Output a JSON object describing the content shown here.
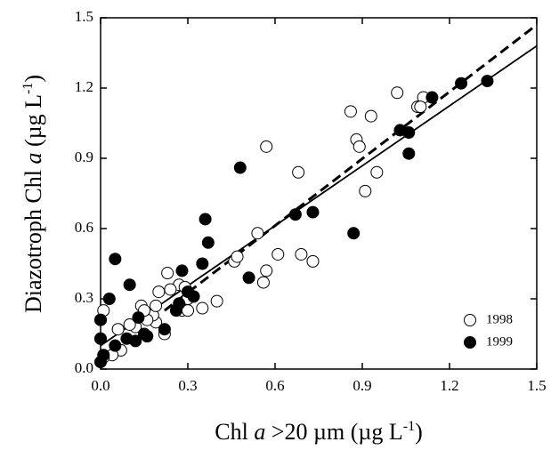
{
  "chart_data": {
    "type": "scatter",
    "xlabel": [
      "Chl ",
      "a",
      " >20 µm (µg L",
      "-1",
      ")"
    ],
    "ylabel": [
      "Diazotroph Chl ",
      "a",
      " (µg L",
      "-1",
      ")"
    ],
    "xlim": [
      0,
      1.5
    ],
    "ylim": [
      0,
      1.5
    ],
    "xticks": [
      {
        "value": 0,
        "label": "0.0"
      },
      {
        "value": 0.3,
        "label": "0.3"
      },
      {
        "value": 0.6,
        "label": "0.6"
      },
      {
        "value": 0.9,
        "label": "0.9"
      },
      {
        "value": 1.2,
        "label": "1.2"
      },
      {
        "value": 1.5,
        "label": "1.5"
      }
    ],
    "yticks": [
      {
        "value": 0,
        "label": "0.0"
      },
      {
        "value": 0.3,
        "label": "0.3"
      },
      {
        "value": 0.6,
        "label": "0.6"
      },
      {
        "value": 0.9,
        "label": "0.9"
      },
      {
        "value": 1.2,
        "label": "1.2"
      },
      {
        "value": 1.5,
        "label": "1.5"
      }
    ],
    "legend": "lower right",
    "series": [
      {
        "name": "1998",
        "color": "#000000",
        "filled": false,
        "x": [
          1.02,
          0.86,
          0.93,
          1.09,
          1.11,
          1.1,
          0.88,
          0.89,
          0.57,
          0.68,
          0.95,
          0.91,
          0.54,
          0.61,
          0.69,
          0.73,
          0.57,
          0.56,
          0.46,
          0.47,
          0.4,
          0.35,
          0.23,
          0.27,
          0.29,
          0.24,
          0.3,
          0.2,
          0.28,
          0.3,
          0.22,
          0.19,
          0.18,
          0.16,
          0.14,
          0.12,
          0.1,
          0.06,
          0.07,
          0.04,
          0.01,
          0.0,
          0.0,
          0.01,
          0.19,
          0.15
        ],
        "values": [
          1.18,
          1.1,
          1.08,
          1.12,
          1.16,
          1.12,
          0.98,
          0.95,
          0.95,
          0.84,
          0.84,
          0.76,
          0.58,
          0.49,
          0.49,
          0.46,
          0.42,
          0.37,
          0.46,
          0.48,
          0.29,
          0.26,
          0.41,
          0.36,
          0.35,
          0.34,
          0.3,
          0.33,
          0.25,
          0.25,
          0.15,
          0.2,
          0.23,
          0.21,
          0.27,
          0.18,
          0.19,
          0.17,
          0.08,
          0.06,
          0.25,
          0.21,
          0.13,
          0.05,
          0.27,
          0.25
        ]
      },
      {
        "name": "1999",
        "color": "#000000",
        "filled": true,
        "x": [
          1.33,
          1.24,
          1.14,
          1.03,
          1.06,
          1.06,
          0.48,
          0.67,
          0.73,
          0.87,
          0.36,
          0.37,
          0.35,
          0.51,
          0.28,
          0.3,
          0.32,
          0.27,
          0.26,
          0.22,
          0.05,
          0.03,
          0.1,
          0.13,
          0.15,
          0.16,
          0.12,
          0.09,
          0.05,
          0.01,
          0.0,
          0.0,
          0.0
        ],
        "values": [
          1.23,
          1.22,
          1.16,
          1.02,
          1.01,
          0.92,
          0.86,
          0.66,
          0.67,
          0.58,
          0.64,
          0.54,
          0.45,
          0.39,
          0.42,
          0.33,
          0.31,
          0.28,
          0.25,
          0.17,
          0.47,
          0.3,
          0.36,
          0.22,
          0.15,
          0.14,
          0.12,
          0.13,
          0.1,
          0.06,
          0.03,
          0.21,
          0.13
        ]
      }
    ],
    "lines": [
      {
        "style": "solid",
        "color": "#000000",
        "x": [
          0,
          1.5
        ],
        "values": [
          0.1,
          1.38
        ]
      },
      {
        "style": "dashed",
        "color": "#000000",
        "x": [
          0.22,
          1.5
        ],
        "values": [
          0.25,
          1.47
        ]
      }
    ]
  }
}
